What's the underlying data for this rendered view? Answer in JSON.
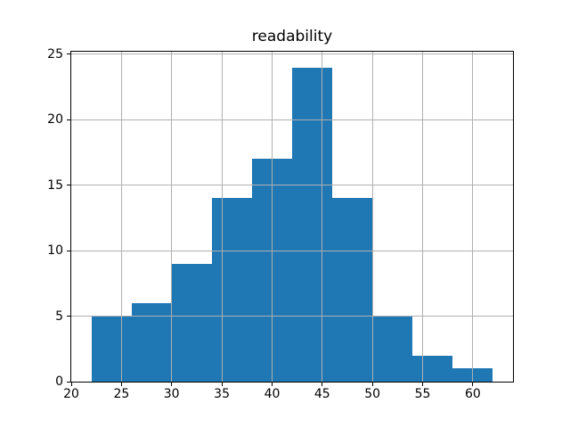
{
  "figure": {
    "background": "#ffffff"
  },
  "chart_data": {
    "type": "bar",
    "subtype": "histogram",
    "title": "readability",
    "xlabel": "",
    "ylabel": "",
    "bin_edges": [
      22,
      26,
      30,
      34,
      38,
      42,
      46,
      50,
      54,
      58,
      62
    ],
    "counts": [
      5,
      6,
      9,
      14,
      17,
      24,
      14,
      5,
      2,
      1
    ],
    "xlim": [
      20,
      64
    ],
    "ylim": [
      0,
      25.2
    ],
    "x_ticks": [
      20,
      25,
      30,
      35,
      40,
      45,
      50,
      55,
      60
    ],
    "y_ticks": [
      0,
      5,
      10,
      15,
      20,
      25
    ],
    "grid": true,
    "grid_over_bars": true,
    "legend": false,
    "colors": {
      "bar": "#1f77b4",
      "grid": "#b0b0b0",
      "spine": "#000000",
      "text": "#000000",
      "background": "#ffffff"
    }
  }
}
